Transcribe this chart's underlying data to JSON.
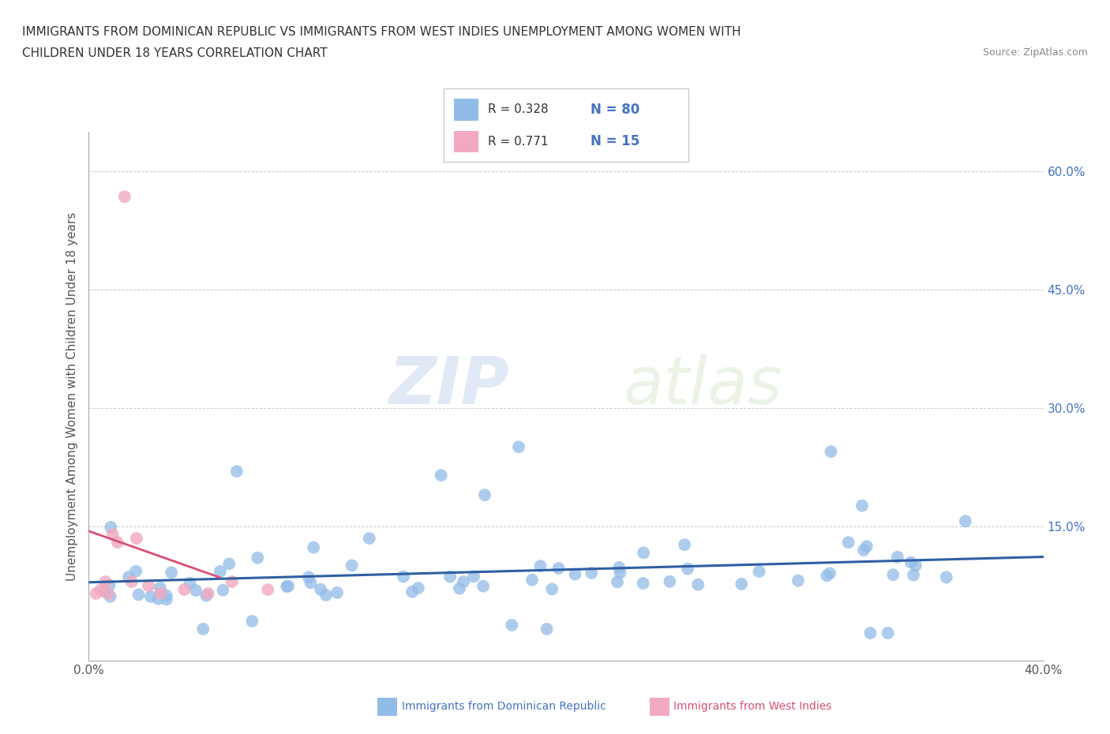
{
  "title_line1": "IMMIGRANTS FROM DOMINICAN REPUBLIC VS IMMIGRANTS FROM WEST INDIES UNEMPLOYMENT AMONG WOMEN WITH",
  "title_line2": "CHILDREN UNDER 18 YEARS CORRELATION CHART",
  "source": "Source: ZipAtlas.com",
  "ylabel": "Unemployment Among Women with Children Under 18 years",
  "xlim": [
    0.0,
    0.4
  ],
  "ylim": [
    -0.02,
    0.65
  ],
  "ytick_positions": [
    0.0,
    0.15,
    0.3,
    0.45,
    0.6
  ],
  "ytick_labels_right": [
    "",
    "15.0%",
    "30.0%",
    "45.0%",
    "60.0%"
  ],
  "blue_color": "#92bce8",
  "pink_color": "#f2a8be",
  "blue_line_color": "#2e5fa3",
  "pink_line_color": "#d94f73",
  "legend_box_color": "#cccccc",
  "R_blue": 0.328,
  "N_blue": 80,
  "R_pink": 0.771,
  "N_pink": 15,
  "watermark_zip": "ZIP",
  "watermark_atlas": "atlas",
  "grid_color": "#cccccc",
  "bottom_legend_blue_label": "Immigrants from Dominican Republic",
  "bottom_legend_pink_label": "Immigrants from West Indies"
}
